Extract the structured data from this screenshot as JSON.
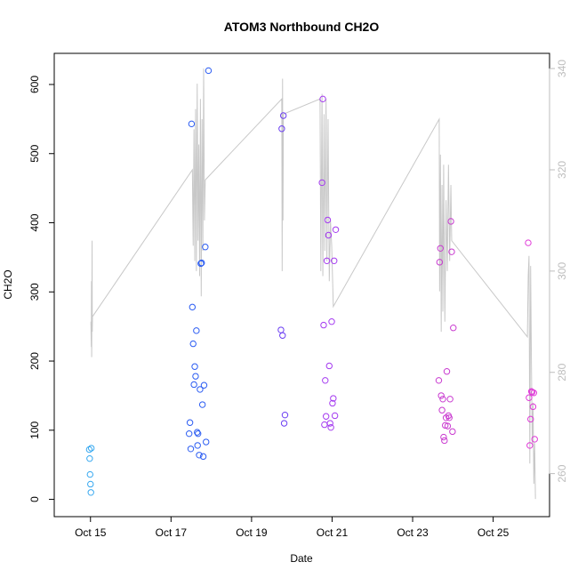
{
  "chart_data": {
    "type": "scatter",
    "title": "ATOM3 Northbound CH2O",
    "xlabel": "Date",
    "ylabel": "CH2O",
    "y2label": "",
    "x_ticks": [
      {
        "value": 14.75,
        "label": "Oct 15"
      },
      {
        "value": 16.75,
        "label": "Oct 17"
      },
      {
        "value": 18.75,
        "label": "Oct 19"
      },
      {
        "value": 20.75,
        "label": "Oct 21"
      },
      {
        "value": 22.75,
        "label": "Oct 23"
      },
      {
        "value": 24.75,
        "label": "Oct 25"
      }
    ],
    "xlim": [
      13.85,
      26.15
    ],
    "ylim": [
      -25,
      645
    ],
    "y_ticks": [
      0,
      100,
      200,
      300,
      400,
      500,
      600
    ],
    "y2lim": [
      251.5,
      343.0
    ],
    "y2_ticks": [
      260,
      280,
      300,
      320,
      340
    ],
    "grid": false,
    "legend": "none",
    "colors": {
      "line": "#c8c8c8",
      "frame": "#000000",
      "right_axis": "#bdbdbd",
      "point_gradient": [
        "#36a8f0",
        "#2b5cf2",
        "#6b3ef2",
        "#a43af0",
        "#c93ad0",
        "#e03ad8"
      ]
    },
    "series": [
      {
        "points": [
          [
            14.72,
            72
          ],
          [
            14.73,
            59
          ],
          [
            14.74,
            36
          ],
          [
            14.75,
            22
          ],
          [
            14.76,
            10
          ],
          [
            14.77,
            74
          ]
        ]
      },
      {
        "points": [
          [
            17.2,
            95
          ],
          [
            17.22,
            111
          ],
          [
            17.24,
            73
          ],
          [
            17.26,
            543
          ],
          [
            17.28,
            278
          ],
          [
            17.3,
            225
          ],
          [
            17.32,
            166
          ],
          [
            17.34,
            192
          ],
          [
            17.36,
            178
          ],
          [
            17.38,
            244
          ],
          [
            17.4,
            97
          ],
          [
            17.41,
            78
          ],
          [
            17.42,
            95
          ],
          [
            17.45,
            64
          ],
          [
            17.47,
            159
          ],
          [
            17.49,
            341
          ],
          [
            17.51,
            342
          ],
          [
            17.53,
            137
          ],
          [
            17.55,
            62
          ],
          [
            17.57,
            165
          ],
          [
            17.6,
            365
          ],
          [
            17.62,
            83
          ],
          [
            17.68,
            620
          ]
        ]
      },
      {
        "points": [
          [
            19.48,
            245
          ],
          [
            19.5,
            536
          ],
          [
            19.52,
            237
          ],
          [
            19.54,
            555
          ],
          [
            19.56,
            110
          ],
          [
            19.58,
            122
          ]
        ]
      },
      {
        "points": [
          [
            20.5,
            458
          ],
          [
            20.52,
            579
          ],
          [
            20.54,
            252
          ],
          [
            20.56,
            108
          ],
          [
            20.58,
            172
          ],
          [
            20.6,
            120
          ],
          [
            20.62,
            345
          ],
          [
            20.64,
            404
          ],
          [
            20.66,
            382
          ],
          [
            20.68,
            193
          ],
          [
            20.7,
            110
          ],
          [
            20.72,
            104
          ],
          [
            20.74,
            257
          ],
          [
            20.76,
            139
          ],
          [
            20.78,
            146
          ],
          [
            20.8,
            345
          ],
          [
            20.82,
            121
          ],
          [
            20.84,
            390
          ]
        ]
      },
      {
        "points": [
          [
            23.4,
            172
          ],
          [
            23.42,
            343
          ],
          [
            23.44,
            363
          ],
          [
            23.46,
            150
          ],
          [
            23.48,
            129
          ],
          [
            23.5,
            145
          ],
          [
            23.52,
            90
          ],
          [
            23.54,
            85
          ],
          [
            23.56,
            107
          ],
          [
            23.58,
            118
          ],
          [
            23.6,
            185
          ],
          [
            23.62,
            106
          ],
          [
            23.64,
            121
          ],
          [
            23.66,
            118
          ],
          [
            23.68,
            145
          ],
          [
            23.7,
            402
          ],
          [
            23.72,
            358
          ],
          [
            23.74,
            98
          ],
          [
            23.76,
            248
          ]
        ]
      },
      {
        "points": [
          [
            25.62,
            371
          ],
          [
            25.64,
            147
          ],
          [
            25.66,
            78
          ],
          [
            25.68,
            116
          ],
          [
            25.7,
            156
          ],
          [
            25.72,
            155
          ],
          [
            25.74,
            134
          ],
          [
            25.76,
            154
          ],
          [
            25.78,
            87
          ]
        ]
      }
    ],
    "line_series_right_axis": [
      [
        14.76,
        290
      ],
      [
        14.77,
        285
      ],
      [
        14.775,
        298
      ],
      [
        14.78,
        283
      ],
      [
        14.785,
        293
      ],
      [
        14.79,
        306
      ],
      [
        14.795,
        288
      ],
      [
        14.8,
        291
      ],
      [
        17.28,
        320
      ],
      [
        17.3,
        305
      ],
      [
        17.32,
        328
      ],
      [
        17.34,
        302
      ],
      [
        17.36,
        332
      ],
      [
        17.38,
        300
      ],
      [
        17.4,
        337
      ],
      [
        17.42,
        306
      ],
      [
        17.44,
        325
      ],
      [
        17.46,
        299
      ],
      [
        17.48,
        334
      ],
      [
        17.5,
        295
      ],
      [
        17.52,
        330
      ],
      [
        17.54,
        304
      ],
      [
        17.56,
        340
      ],
      [
        17.58,
        310
      ],
      [
        17.6,
        318
      ],
      [
        19.5,
        334
      ],
      [
        19.51,
        300
      ],
      [
        19.52,
        338
      ],
      [
        19.53,
        310
      ],
      [
        19.54,
        331
      ],
      [
        20.45,
        334
      ],
      [
        20.47,
        300
      ],
      [
        20.5,
        335
      ],
      [
        20.52,
        299
      ],
      [
        20.55,
        331
      ],
      [
        20.57,
        304
      ],
      [
        20.6,
        334
      ],
      [
        20.62,
        302
      ],
      [
        20.65,
        330
      ],
      [
        20.68,
        298
      ],
      [
        20.71,
        310
      ],
      [
        20.74,
        305
      ],
      [
        20.78,
        293
      ],
      [
        23.41,
        330
      ],
      [
        23.42,
        296
      ],
      [
        23.44,
        323
      ],
      [
        23.46,
        288
      ],
      [
        23.48,
        317
      ],
      [
        23.5,
        292
      ],
      [
        23.52,
        321
      ],
      [
        23.55,
        290
      ],
      [
        23.58,
        314
      ],
      [
        23.61,
        300
      ],
      [
        23.64,
        321
      ],
      [
        23.67,
        302
      ],
      [
        23.7,
        317
      ],
      [
        23.72,
        306
      ],
      [
        25.6,
        287
      ],
      [
        25.62,
        299
      ],
      [
        25.64,
        303
      ],
      [
        25.66,
        262
      ],
      [
        25.68,
        301
      ],
      [
        25.7,
        282
      ],
      [
        25.72,
        266
      ],
      [
        25.74,
        274
      ],
      [
        25.76,
        258
      ],
      [
        25.78,
        266
      ],
      [
        25.8,
        255
      ]
    ]
  }
}
